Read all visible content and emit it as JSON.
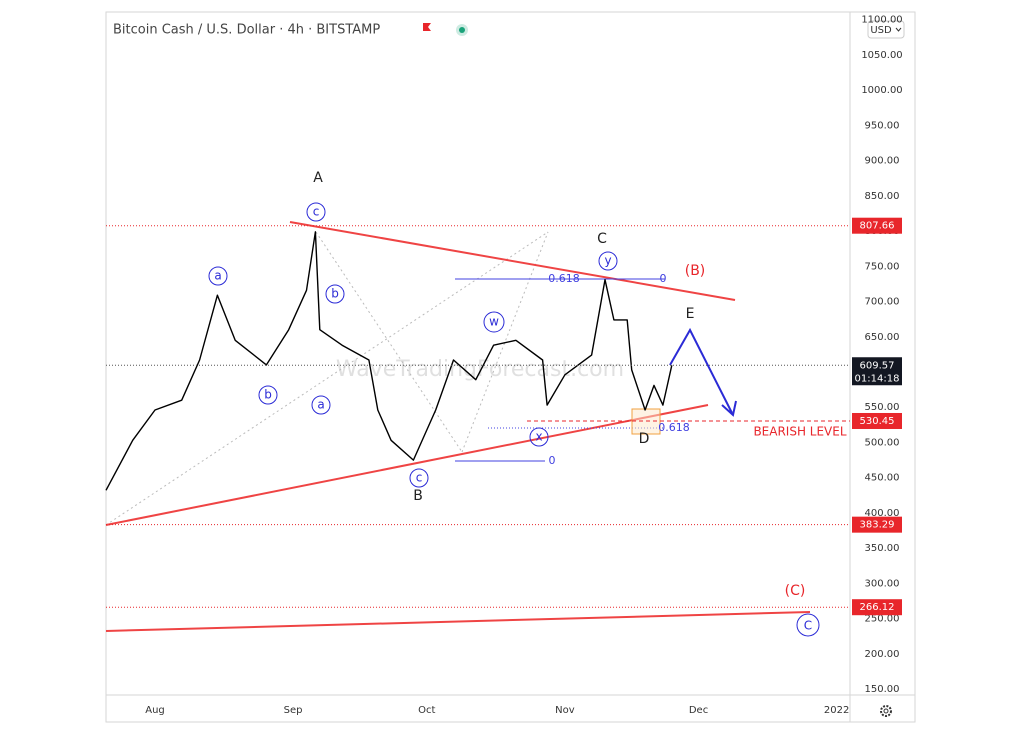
{
  "chart_data": {
    "type": "line",
    "title": "Bitcoin Cash / U.S. Dollar · 4h · BITSTAMP",
    "currency": "USD",
    "watermark": "WaveTradingForecast.com",
    "color": "#000000",
    "x": [
      "2021-07-21",
      "2021-07-27",
      "2021-08-01",
      "2021-08-07",
      "2021-08-11",
      "2021-08-15",
      "2021-08-19",
      "2021-08-26",
      "2021-08-31",
      "2021-09-04",
      "2021-09-06",
      "2021-09-07",
      "2021-09-12",
      "2021-09-18",
      "2021-09-20",
      "2021-09-23",
      "2021-09-28",
      "2021-10-03",
      "2021-10-07",
      "2021-10-12",
      "2021-10-16",
      "2021-10-21",
      "2021-10-27",
      "2021-10-28",
      "2021-11-01",
      "2021-11-07",
      "2021-11-10",
      "2021-11-12",
      "2021-11-15",
      "2021-11-16",
      "2021-11-19",
      "2021-11-21",
      "2021-11-23",
      "2021-11-25"
    ],
    "values": [
      432,
      503,
      546,
      560,
      617,
      709,
      645,
      610,
      660,
      716,
      799,
      660,
      638,
      617,
      546,
      503,
      475,
      546,
      617,
      589,
      638,
      645,
      617,
      553,
      596,
      624,
      731,
      674,
      674,
      603,
      546,
      581,
      553,
      609.57
    ],
    "xlim": [
      "2021-07-21",
      "2022-01-04"
    ],
    "xticks": [
      {
        "value": "2021-08-01",
        "label": "Aug"
      },
      {
        "value": "2021-09-01",
        "label": "Sep"
      },
      {
        "value": "2021-10-01",
        "label": "Oct"
      },
      {
        "value": "2021-11-01",
        "label": "Nov"
      },
      {
        "value": "2021-12-01",
        "label": "Dec"
      },
      {
        "value": "2022-01-01",
        "label": "2022"
      }
    ],
    "ylim": [
      141.5,
      1111
    ],
    "yticks": [
      {
        "value": 150,
        "label": "150.00"
      },
      {
        "value": 200,
        "label": "200.00"
      },
      {
        "value": 250,
        "label": "250.00"
      },
      {
        "value": 300,
        "label": "300.00"
      },
      {
        "value": 350,
        "label": "350.00"
      },
      {
        "value": 400,
        "label": "400.00"
      },
      {
        "value": 450,
        "label": "450.00"
      },
      {
        "value": 500,
        "label": "500.00"
      },
      {
        "value": 550,
        "label": "550.00"
      },
      {
        "value": 600,
        "label": "600.00"
      },
      {
        "value": 650,
        "label": "650.00"
      },
      {
        "value": 700,
        "label": "700.00"
      },
      {
        "value": 750,
        "label": "750.00"
      },
      {
        "value": 800,
        "label": "800.00"
      },
      {
        "value": 850,
        "label": "850.00"
      },
      {
        "value": 900,
        "label": "900.00"
      },
      {
        "value": 950,
        "label": "950.00"
      },
      {
        "value": 1000,
        "label": "1000.00"
      },
      {
        "value": 1050,
        "label": "1050.00"
      },
      {
        "value": 1100,
        "label": "1100.00"
      }
    ],
    "levels": [
      807.66,
      530.45,
      383.29,
      266.12
    ],
    "level_color": "#e8262b",
    "last_price": 609.57,
    "countdown": "01:14:18",
    "waves": [
      "A",
      "B",
      "C",
      "D",
      "E",
      "(B)",
      "(C)"
    ],
    "subwaves": [
      "a",
      "b",
      "c",
      "b",
      "a",
      "c",
      "w",
      "x",
      "y",
      "C"
    ],
    "fib": [
      "0.618",
      "0",
      "0.618",
      "0"
    ],
    "bearish_label": "BEARISH LEVEL"
  }
}
